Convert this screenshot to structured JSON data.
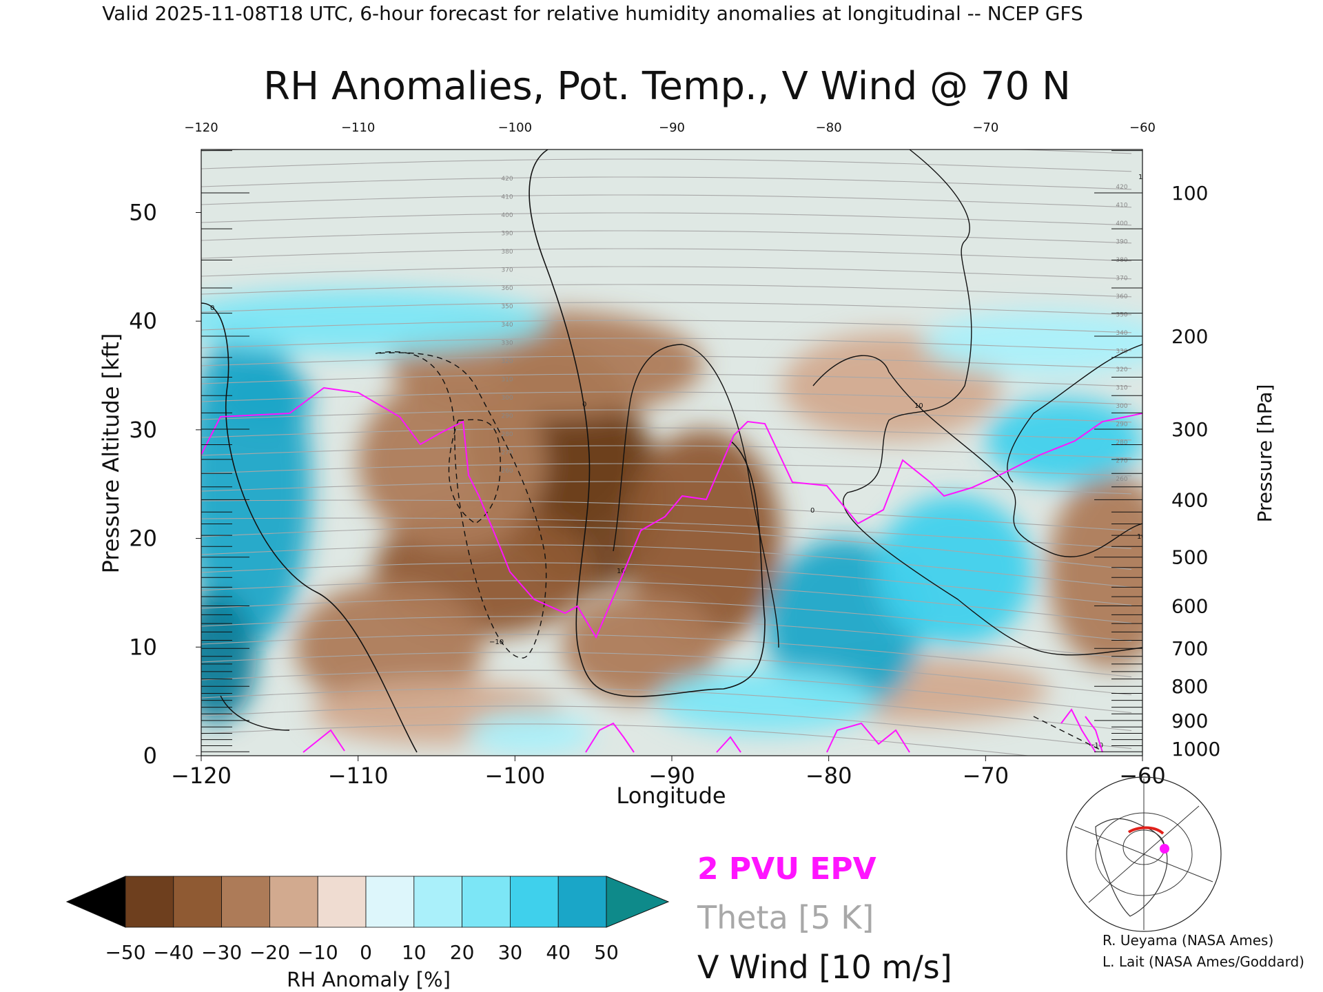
{
  "header": "Valid 2025-11-08T18 UTC, 6-hour forecast for relative humidity anomalies at longitudinal -- NCEP GFS",
  "chart_data": {
    "type": "heatmap",
    "title": "RH Anomalies, Pot. Temp., V Wind @ 70 N",
    "xlabel": "Longitude",
    "ylabel": "Pressure Altitude [kft]",
    "y2label": "Pressure [hPa]",
    "xlim": [
      -120,
      -60
    ],
    "ylim": [
      0,
      55.8
    ],
    "x_ticks": [
      -120,
      -110,
      -100,
      -90,
      -80,
      -70,
      -60
    ],
    "x_ticks_top": [
      -120,
      -110,
      -100,
      -90,
      -80,
      -70,
      -60
    ],
    "y_ticks": [
      0,
      10,
      20,
      30,
      40,
      50
    ],
    "pressure_ticks": [
      {
        "hPa": 100,
        "label": "100"
      },
      {
        "hPa": 200,
        "label": "200"
      },
      {
        "hPa": 300,
        "label": "300"
      },
      {
        "hPa": 400,
        "label": "400"
      },
      {
        "hPa": 500,
        "label": "500"
      },
      {
        "hPa": 600,
        "label": "600"
      },
      {
        "hPa": 700,
        "label": "700"
      },
      {
        "hPa": 800,
        "label": "800"
      },
      {
        "hPa": 900,
        "label": "900"
      },
      {
        "hPa": 1000,
        "label": "1000"
      }
    ],
    "rh_anomaly_blobs": [
      {
        "lon": -97.5,
        "kft": 29,
        "rlon": 5.5,
        "rkft": 9,
        "value": -48
      },
      {
        "lon": -95.5,
        "kft": 24,
        "rlon": 5,
        "rkft": 9,
        "value": -42
      },
      {
        "lon": -102,
        "kft": 17,
        "rlon": 7,
        "rkft": 6,
        "value": -32
      },
      {
        "lon": -88,
        "kft": 20,
        "rlon": 5,
        "rkft": 10,
        "value": -38
      },
      {
        "lon": -104,
        "kft": 27,
        "rlon": 6,
        "rkft": 8,
        "value": -26
      },
      {
        "lon": -108,
        "kft": 10,
        "rlon": 6,
        "rkft": 6,
        "value": -30
      },
      {
        "lon": -98,
        "kft": 36,
        "rlon": 10,
        "rkft": 5,
        "value": -22
      },
      {
        "lon": -92,
        "kft": 10,
        "rlon": 5,
        "rkft": 5,
        "value": -25
      },
      {
        "lon": -76,
        "kft": 34,
        "rlon": 7,
        "rkft": 5,
        "value": -15
      },
      {
        "lon": -62,
        "kft": 17,
        "rlon": 4,
        "rkft": 9,
        "value": -30
      },
      {
        "lon": -74,
        "kft": 6,
        "rlon": 8,
        "rkft": 3,
        "value": -15
      },
      {
        "lon": -105,
        "kft": 4,
        "rlon": 8,
        "rkft": 3,
        "value": -18
      },
      {
        "lon": -117,
        "kft": 25,
        "rlon": 4,
        "rkft": 15,
        "value": 42
      },
      {
        "lon": -119,
        "kft": 9,
        "rlon": 2.5,
        "rkft": 6,
        "value": 50
      },
      {
        "lon": -116,
        "kft": 33,
        "rlon": 3,
        "rkft": 3,
        "value": 48
      },
      {
        "lon": -79,
        "kft": 12,
        "rlon": 5,
        "rkft": 8,
        "value": 40
      },
      {
        "lon": -72,
        "kft": 17,
        "rlon": 5,
        "rkft": 7,
        "value": 30
      },
      {
        "lon": -65,
        "kft": 29,
        "rlon": 5,
        "rkft": 4,
        "value": 35
      },
      {
        "lon": -84,
        "kft": 5,
        "rlon": 7,
        "rkft": 3,
        "value": 20
      },
      {
        "lon": -99,
        "kft": 2,
        "rlon": 4,
        "rkft": 2,
        "value": 15
      },
      {
        "lon": -110,
        "kft": 40,
        "rlon": 12,
        "rkft": 3,
        "value": 20
      },
      {
        "lon": -66,
        "kft": 38,
        "rlon": 8,
        "rkft": 3,
        "value": 15
      }
    ],
    "theta_labels": [
      "420",
      "410",
      "400",
      "390",
      "380",
      "370",
      "360",
      "350",
      "340",
      "330",
      "320",
      "310",
      "300",
      "290",
      "280",
      "270",
      "260"
    ],
    "colorbar": {
      "label": "RH Anomaly [%]",
      "ticks": [
        "−50",
        "−40",
        "−30",
        "−20",
        "−10",
        "0",
        "10",
        "20",
        "30",
        "40",
        "50"
      ],
      "colors": [
        "#462713",
        "#6e3f1e",
        "#8f5a33",
        "#ad7b58",
        "#d2aa8f",
        "#efdcd1",
        "#ddf6fb",
        "#aaf0fa",
        "#7ce6f6",
        "#3fd0ec",
        "#1aa6c8",
        "#0a7c98"
      ],
      "under_color": "#000000",
      "over_color": "#0e8a8a"
    },
    "legend": {
      "epv": "2 PVU EPV",
      "theta": "Theta [5 K]",
      "wind": "V Wind [10 m/s]",
      "epv_color": "#ff14ff",
      "theta_color": "#a8a8a8",
      "wind_color": "#111111"
    },
    "wind_contour_labels": [
      "0",
      "10",
      "−10"
    ]
  },
  "credits": {
    "line1": "R. Ueyama (NASA Ames)",
    "line2": "L. Lait (NASA Ames/Goddard)"
  }
}
